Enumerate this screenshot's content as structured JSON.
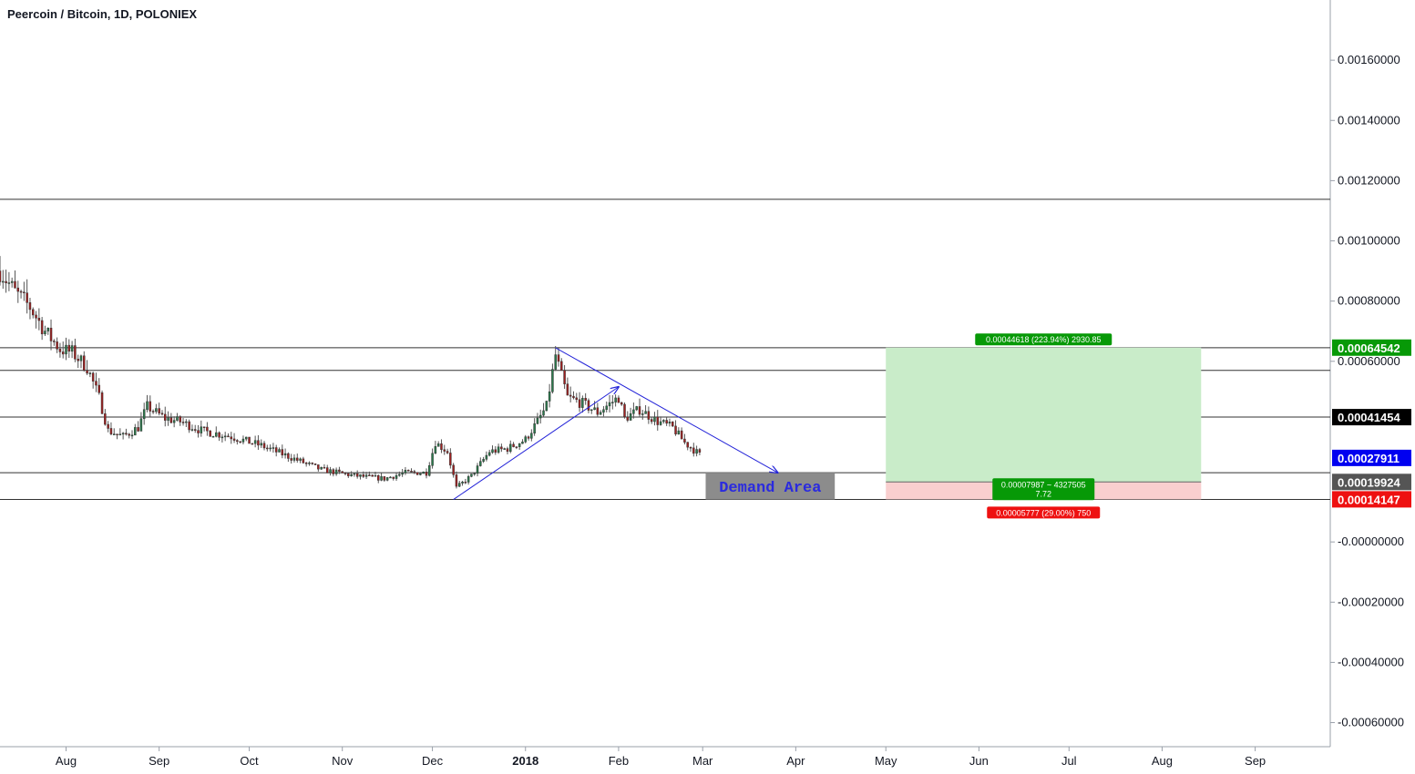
{
  "title": "Peercoin / Bitcoin, 1D, POLONIEX",
  "chart_data": {
    "type": "candlestick",
    "symbol": "Peercoin / Bitcoin",
    "interval": "1D",
    "exchange": "POLONIEX",
    "ylim": [
      -0.00068,
      0.0018
    ],
    "y_ticks": [
      {
        "value": 0.0016,
        "label": "0.00160000"
      },
      {
        "value": 0.0014,
        "label": "0.00140000"
      },
      {
        "value": 0.0012,
        "label": "0.00120000"
      },
      {
        "value": 0.001,
        "label": "0.00100000"
      },
      {
        "value": 0.0008,
        "label": "0.00080000"
      },
      {
        "value": 0.0006,
        "label": "0.00060000"
      },
      {
        "value": 0.0,
        "label": "-0.00000000"
      },
      {
        "value": -0.0002,
        "label": "-0.00020000"
      },
      {
        "value": -0.0004,
        "label": "-0.00040000"
      },
      {
        "value": -0.0006,
        "label": "-0.00060000"
      }
    ],
    "x_ticks": [
      {
        "date": "2017-08-01",
        "label": "Aug",
        "bold": false
      },
      {
        "date": "2017-09-01",
        "label": "Sep",
        "bold": false
      },
      {
        "date": "2017-10-01",
        "label": "Oct",
        "bold": false
      },
      {
        "date": "2017-11-01",
        "label": "Nov",
        "bold": false
      },
      {
        "date": "2017-12-01",
        "label": "Dec",
        "bold": false
      },
      {
        "date": "2018-01-01",
        "label": "2018",
        "bold": true
      },
      {
        "date": "2018-02-01",
        "label": "Feb",
        "bold": false
      },
      {
        "date": "2018-03-01",
        "label": "Mar",
        "bold": false
      },
      {
        "date": "2018-04-01",
        "label": "Apr",
        "bold": false
      },
      {
        "date": "2018-05-01",
        "label": "May",
        "bold": false
      },
      {
        "date": "2018-06-01",
        "label": "Jun",
        "bold": false
      },
      {
        "date": "2018-07-01",
        "label": "Jul",
        "bold": false
      },
      {
        "date": "2018-08-01",
        "label": "Aug",
        "bold": false
      },
      {
        "date": "2018-09-01",
        "label": "Sep",
        "bold": false
      }
    ],
    "x_range": [
      "2017-07-10",
      "2018-09-26"
    ],
    "price_path": [
      [
        "2017-07-10",
        0.0009
      ],
      [
        "2017-07-15",
        0.00083
      ],
      [
        "2017-07-20",
        0.00078
      ],
      [
        "2017-07-25",
        0.0007
      ],
      [
        "2017-07-30",
        0.00064
      ],
      [
        "2017-08-03",
        0.00063
      ],
      [
        "2017-08-08",
        0.00058
      ],
      [
        "2017-08-12",
        0.00048
      ],
      [
        "2017-08-15",
        0.00037
      ],
      [
        "2017-08-20",
        0.00035
      ],
      [
        "2017-08-25",
        0.00038
      ],
      [
        "2017-08-28",
        0.00045
      ],
      [
        "2017-09-03",
        0.00041
      ],
      [
        "2017-09-08",
        0.0004
      ],
      [
        "2017-09-15",
        0.00037
      ],
      [
        "2017-09-25",
        0.00035
      ],
      [
        "2017-10-05",
        0.00032
      ],
      [
        "2017-10-15",
        0.00028
      ],
      [
        "2017-10-25",
        0.00024
      ],
      [
        "2017-11-05",
        0.00022
      ],
      [
        "2017-11-15",
        0.00021
      ],
      [
        "2017-11-22",
        0.00023
      ],
      [
        "2017-11-29",
        0.00023
      ],
      [
        "2017-12-02",
        0.00033
      ],
      [
        "2017-12-06",
        0.0003
      ],
      [
        "2017-12-09",
        0.00018
      ],
      [
        "2017-12-14",
        0.00022
      ],
      [
        "2017-12-20",
        0.0003
      ],
      [
        "2017-12-26",
        0.00031
      ],
      [
        "2018-01-01",
        0.00034
      ],
      [
        "2018-01-05",
        0.0004
      ],
      [
        "2018-01-08",
        0.00045
      ],
      [
        "2018-01-11",
        0.00062
      ],
      [
        "2018-01-15",
        0.00048
      ],
      [
        "2018-01-20",
        0.00046
      ],
      [
        "2018-01-25",
        0.00043
      ],
      [
        "2018-02-01",
        0.00048
      ],
      [
        "2018-02-03",
        0.00041
      ],
      [
        "2018-02-08",
        0.00044
      ],
      [
        "2018-02-14",
        0.0004
      ],
      [
        "2018-02-19",
        0.00038
      ],
      [
        "2018-02-23",
        0.00033
      ],
      [
        "2018-02-28",
        0.00029
      ]
    ],
    "horizontal_lines": [
      0.001138,
      0.000645,
      0.00057,
      0.000415,
      0.00023,
      0.000141
    ],
    "trend_lines": [
      {
        "from": [
          "2017-12-08",
          0.000141
        ],
        "to": [
          "2018-02-01",
          0.000515
        ],
        "arrow": true
      },
      {
        "from": [
          "2018-01-11",
          0.000645
        ],
        "to": [
          "2018-03-26",
          0.00023
        ],
        "arrow": true
      }
    ],
    "demand_box": {
      "label": "Demand Area",
      "from": "2018-03-02",
      "to": "2018-04-14",
      "y_low": 0.000141,
      "y_high": 0.00023
    },
    "position": {
      "from": "2018-05-01",
      "to": "2018-08-14",
      "entry": 0.00019924,
      "target": 0.00064542,
      "stop": 0.00014147,
      "target_label": "0.00044618 (223.94%) 2930.85",
      "entry_label_line1": "0.00007987 ~ 4327505",
      "entry_label_line2": "7.72",
      "stop_label": "0.00005777 (29.00%) 750"
    },
    "price_badges": [
      {
        "value": 0.00064542,
        "label": "0.00064542",
        "color": "#079907"
      },
      {
        "value": 0.00041454,
        "label": "0.00041454",
        "color": "#000000"
      },
      {
        "value": 0.00027911,
        "label": "0.00027911",
        "color": "#0000f0"
      },
      {
        "value": 0.00019924,
        "label": "0.00019924",
        "color": "#555555"
      },
      {
        "value": 0.00014147,
        "label": "0.00014147",
        "color": "#ee1111"
      }
    ],
    "colors": {
      "up": "#2a7a4b",
      "down": "#a02020",
      "trend": "#2323d8",
      "profit": "#c9ecc9",
      "loss": "#f9cfcf"
    }
  }
}
